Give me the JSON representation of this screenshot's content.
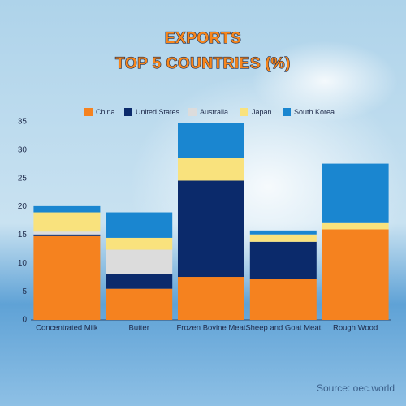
{
  "chart_data": {
    "type": "stacked-bar",
    "title": "EXPORTS",
    "subtitle": "TOP 5 COUNTRIES (%)",
    "source": "Source: oec.world",
    "categories": [
      "Concentrated Milk",
      "Butter",
      "Frozen Bovine Meat",
      "Sheep and Goat Meat",
      "Rough Wood"
    ],
    "series": [
      {
        "name": "China",
        "color": "#f5821f",
        "values": [
          14.8,
          5.5,
          7.6,
          7.3,
          16
        ]
      },
      {
        "name": "United States",
        "color": "#0b2a6b",
        "values": [
          0.3,
          2.6,
          17,
          6.5,
          0
        ]
      },
      {
        "name": "Australia",
        "color": "#dcdcdc",
        "values": [
          0.5,
          4.3,
          0,
          0,
          0
        ]
      },
      {
        "name": "Japan",
        "color": "#f9e27d",
        "values": [
          3.4,
          2.1,
          4,
          1.3,
          1.1
        ]
      },
      {
        "name": "South Korea",
        "color": "#1a86d0",
        "values": [
          1.1,
          4.5,
          6.2,
          0.7,
          10.5
        ]
      }
    ],
    "ylim": [
      0,
      35
    ],
    "yticks": [
      0,
      5,
      10,
      15,
      20,
      25,
      30,
      35
    ]
  }
}
